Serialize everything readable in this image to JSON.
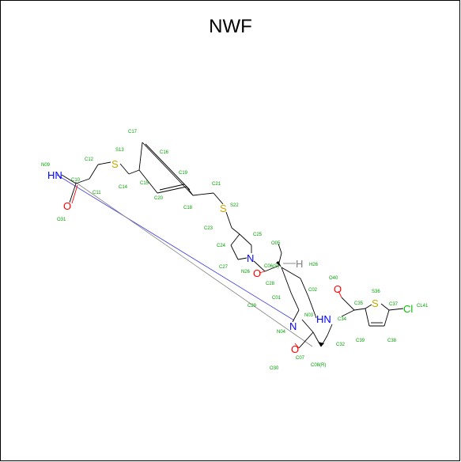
{
  "title": "NWF",
  "colors": {
    "bond": "#000000",
    "carbon_label": "#00a000",
    "nitrogen": "#0000ff",
    "oxygen": "#ff0000",
    "sulfur": "#c8a800",
    "chlorine": "#00c000",
    "hydrogen": "#808080",
    "contact_line_blue": "#4040e0",
    "contact_line_gray": "#808080"
  },
  "heteroatoms": {
    "hn1": "HN",
    "o1": "O",
    "s1": "S",
    "s2": "S",
    "n2": "N",
    "o2": "O",
    "h1": "H",
    "n3": "N",
    "hn2": "HN",
    "o3": "O",
    "s3": "S",
    "cl": "Cl",
    "o4": "O"
  },
  "atom_labels": {
    "N09": "N09",
    "C10": "C10",
    "C11": "C11",
    "C12": "C12",
    "S13": "S13",
    "C14": "C14",
    "C15": "C15",
    "C16": "C16",
    "C17": "C17",
    "C19": "C19",
    "C20": "C20",
    "C18": "C18",
    "C21": "C21",
    "S22": "S22",
    "O31": "O31",
    "C23": "C23",
    "C24": "C24",
    "C25": "C25",
    "C27": "C27",
    "N26": "N26",
    "O05": "O05",
    "C06": "C06(S)",
    "H26": "H26",
    "C28": "C28",
    "C01": "C01",
    "C02": "C02",
    "O40": "O40",
    "N03": "N03",
    "C29": "C29",
    "N04": "N04",
    "C07": "C07",
    "O30": "O30",
    "C08": "C08(R)",
    "C32": "C32",
    "C34": "C34",
    "C35": "C35",
    "S36": "S36",
    "C37": "C37",
    "CL41": "CL41",
    "C38": "C38",
    "C39": "C39"
  }
}
